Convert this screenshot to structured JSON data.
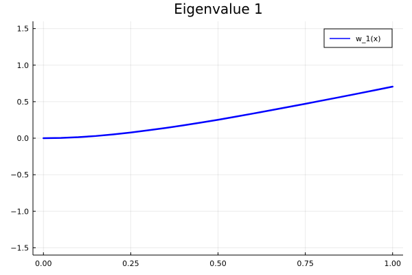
{
  "chart_data": {
    "type": "line",
    "title": "Eigenvalue 1",
    "xlabel": "",
    "ylabel": "",
    "xlim": [
      -0.03,
      1.03
    ],
    "ylim": [
      -1.6,
      1.6
    ],
    "xticks": [
      "0.00",
      "0.25",
      "0.50",
      "0.75",
      "1.00"
    ],
    "xtick_values": [
      0,
      0.25,
      0.5,
      0.75,
      1.0
    ],
    "yticks": [
      "1.5",
      "1.0",
      "0.5",
      "0.0",
      "−0.5",
      "−1.0",
      "−1.5"
    ],
    "ytick_values": [
      1.5,
      1.0,
      0.5,
      0.0,
      -0.5,
      -1.0,
      -1.5
    ],
    "grid": true,
    "legend_position": "top-right",
    "series": [
      {
        "name": "w_1(x)",
        "color": "#0000ff",
        "x": [
          0.0,
          0.05,
          0.1,
          0.15,
          0.2,
          0.25,
          0.3,
          0.35,
          0.4,
          0.45,
          0.5,
          0.55,
          0.6,
          0.65,
          0.7,
          0.75,
          0.8,
          0.85,
          0.9,
          0.95,
          1.0
        ],
        "y": [
          0.0,
          0.004,
          0.014,
          0.03,
          0.052,
          0.078,
          0.108,
          0.14,
          0.175,
          0.213,
          0.252,
          0.294,
          0.337,
          0.381,
          0.426,
          0.471,
          0.517,
          0.563,
          0.61,
          0.658,
          0.706
        ]
      }
    ]
  }
}
